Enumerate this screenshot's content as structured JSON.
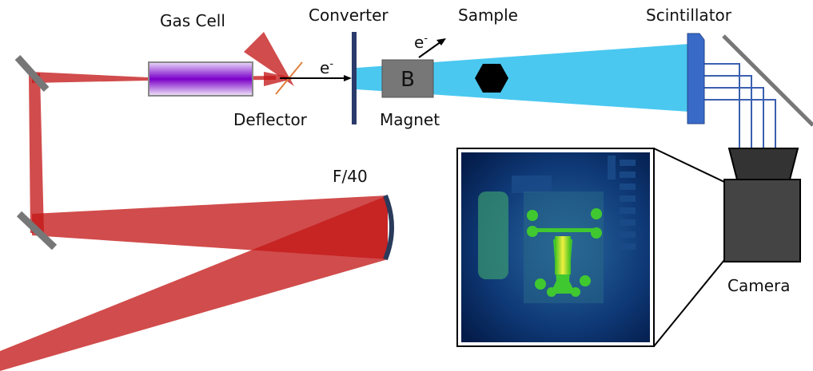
{
  "labels": {
    "gas_cell": "Gas Cell",
    "converter": "Converter",
    "sample": "Sample",
    "scintillator": "Scintillator",
    "deflector": "Deflector",
    "magnet": "Magnet",
    "magnet_symbol": "B",
    "focus": "F/40",
    "camera": "Camera"
  },
  "electron_labels": [
    {
      "base": "e",
      "sup": "-"
    },
    {
      "base": "e",
      "sup": "-"
    }
  ]
}
